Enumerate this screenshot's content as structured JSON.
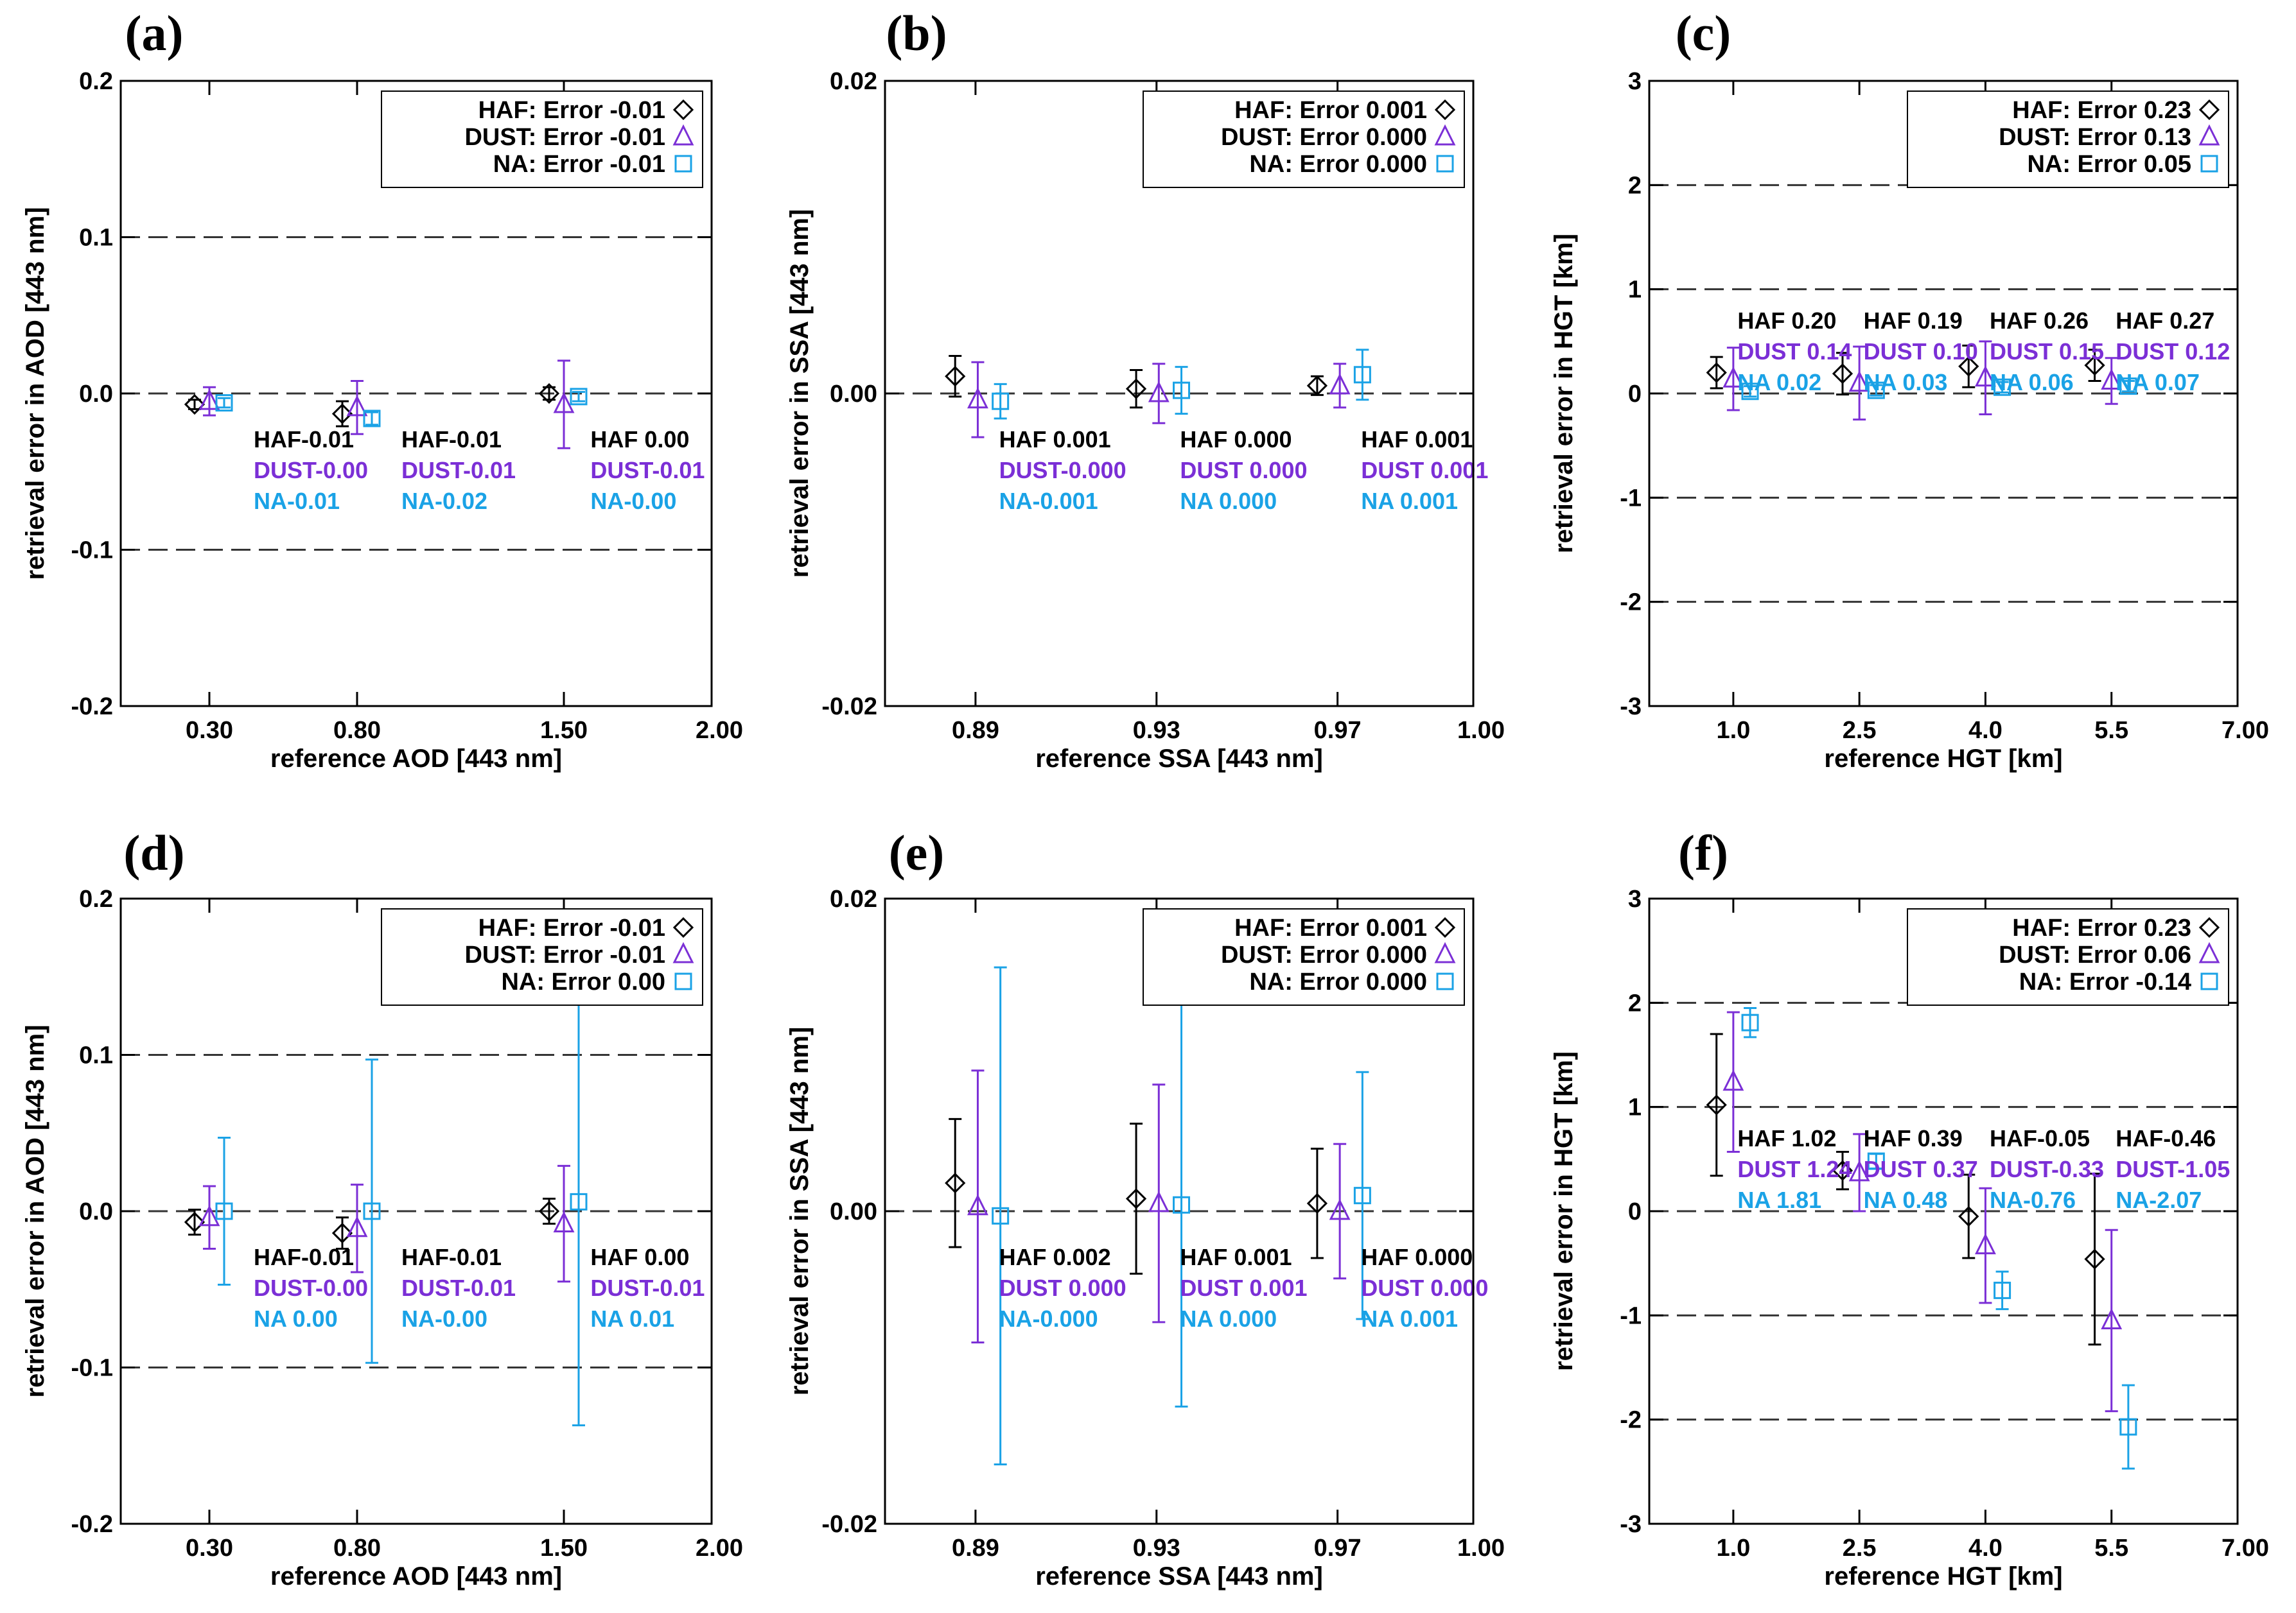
{
  "colors": {
    "HAF": "#000000",
    "DUST": "#7b2fd6",
    "NA": "#1aa2e6"
  },
  "chart_data": [
    {
      "type": "scatter",
      "panel": "(a)",
      "letter": "(a)",
      "xlabel": "reference AOD [443 nm]",
      "ylabel": "retrieval error in AOD [443 nm]",
      "xlim": [
        0,
        2.0
      ],
      "ylim": [
        -0.2,
        0.2
      ],
      "yticks": [
        -0.2,
        -0.1,
        0.0,
        0.1,
        0.2
      ],
      "ytick_labels": [
        "-0.2",
        "-0.1",
        "0.0",
        "0.1",
        "0.2"
      ],
      "xticks": [
        0.3,
        0.8,
        1.5,
        2.0
      ],
      "xtick_labels": [
        "0.30",
        "0.80",
        "1.50",
        "2.00"
      ],
      "ref_lines": [
        0.1,
        0.0,
        -0.1
      ],
      "legend": [
        {
          "series": "HAF",
          "label": "HAF: Error -0.01"
        },
        {
          "series": "DUST",
          "label": "DUST: Error -0.01"
        },
        {
          "series": "NA",
          "label": "NA: Error -0.01"
        }
      ],
      "series": [
        {
          "name": "HAF",
          "marker": "diamond",
          "x": [
            0.25,
            0.75,
            1.45
          ],
          "y": [
            -0.007,
            -0.013,
            0.0
          ],
          "err": [
            0.003,
            0.008,
            0.004
          ]
        },
        {
          "name": "DUST",
          "marker": "triangle",
          "x": [
            0.3,
            0.8,
            1.5
          ],
          "y": [
            -0.005,
            -0.009,
            -0.007
          ],
          "err": [
            0.009,
            0.017,
            0.028
          ]
        },
        {
          "name": "NA",
          "marker": "square",
          "x": [
            0.35,
            0.85,
            1.55
          ],
          "y": [
            -0.006,
            -0.016,
            -0.002
          ],
          "err": [
            0.003,
            0.004,
            0.003
          ]
        }
      ],
      "annotations": [
        {
          "x": 0.45,
          "y": -0.018,
          "lines": [
            "HAF-0.01",
            "DUST-0.00",
            "NA-0.01"
          ]
        },
        {
          "x": 0.95,
          "y": -0.018,
          "lines": [
            "HAF-0.01",
            "DUST-0.01",
            "NA-0.02"
          ]
        },
        {
          "x": 1.59,
          "y": -0.018,
          "lines": [
            "HAF 0.00",
            "DUST-0.01",
            "NA-0.00"
          ]
        }
      ]
    },
    {
      "type": "scatter",
      "panel": "(b)",
      "letter": "(b)",
      "xlabel": "reference SSA [443 nm]",
      "ylabel": "retrieval error in SSA [443 nm]",
      "xlim": [
        0.87,
        1.0
      ],
      "ylim": [
        -0.02,
        0.02
      ],
      "yticks": [
        -0.02,
        0.0,
        0.02
      ],
      "ytick_labels": [
        "-0.02",
        "0.00",
        "0.02"
      ],
      "xticks": [
        0.89,
        0.93,
        0.97,
        1.0
      ],
      "xtick_labels": [
        "0.89",
        "0.93",
        "0.97",
        "1.00"
      ],
      "ref_lines": [
        0.0
      ],
      "legend": [
        {
          "series": "HAF",
          "label": "HAF: Error  0.001"
        },
        {
          "series": "DUST",
          "label": "DUST: Error  0.000"
        },
        {
          "series": "NA",
          "label": "NA: Error  0.000"
        }
      ],
      "series": [
        {
          "name": "HAF",
          "marker": "diamond",
          "x": [
            0.8855,
            0.9255,
            0.9655
          ],
          "y": [
            0.0011,
            0.0003,
            0.0005
          ],
          "err": [
            0.0013,
            0.0012,
            0.0006
          ]
        },
        {
          "name": "DUST",
          "marker": "triangle",
          "x": [
            0.8905,
            0.9305,
            0.9705
          ],
          "y": [
            -0.0004,
            0.0,
            0.0005
          ],
          "err": [
            0.0024,
            0.0019,
            0.0014
          ]
        },
        {
          "name": "NA",
          "marker": "square",
          "x": [
            0.8955,
            0.9355,
            0.9755
          ],
          "y": [
            -0.0005,
            0.0002,
            0.0012
          ],
          "err": [
            0.0011,
            0.0015,
            0.0016
          ]
        }
      ],
      "annotations": [
        {
          "x": 0.8952,
          "y": -0.0018,
          "lines": [
            "HAF 0.001",
            "DUST-0.000",
            "NA-0.001"
          ]
        },
        {
          "x": 0.9352,
          "y": -0.0018,
          "lines": [
            "HAF 0.000",
            "DUST 0.000",
            "NA 0.000"
          ]
        },
        {
          "x": 0.9752,
          "y": -0.0018,
          "lines": [
            "HAF 0.001",
            "DUST 0.001",
            "NA 0.001"
          ]
        }
      ]
    },
    {
      "type": "scatter",
      "panel": "(c)",
      "letter": "(c)",
      "xlabel": "reference HGT [km]",
      "ylabel": "retrieval error in HGT [km]",
      "xlim": [
        0,
        7.0
      ],
      "ylim": [
        -3,
        3
      ],
      "yticks": [
        -3,
        -2,
        -1,
        0,
        1,
        2,
        3
      ],
      "ytick_labels": [
        "-3",
        "-2",
        "-1",
        "0",
        "1",
        "2",
        "3"
      ],
      "xticks": [
        1.0,
        2.5,
        4.0,
        5.5,
        7.0
      ],
      "xtick_labels": [
        "1.0",
        "2.5",
        "4.0",
        "5.5",
        "7.00"
      ],
      "ref_lines": [
        2,
        1,
        0,
        -1,
        -2
      ],
      "legend": [
        {
          "series": "HAF",
          "label": "HAF: Error  0.23"
        },
        {
          "series": "DUST",
          "label": "DUST: Error  0.13"
        },
        {
          "series": "NA",
          "label": "NA: Error  0.05"
        }
      ],
      "series": [
        {
          "name": "HAF",
          "marker": "diamond",
          "x": [
            0.8,
            2.3,
            3.8,
            5.3
          ],
          "y": [
            0.2,
            0.19,
            0.26,
            0.27
          ],
          "err": [
            0.15,
            0.2,
            0.2,
            0.15
          ]
        },
        {
          "name": "DUST",
          "marker": "triangle",
          "x": [
            1.0,
            2.5,
            4.0,
            5.5
          ],
          "y": [
            0.14,
            0.1,
            0.15,
            0.12
          ],
          "err": [
            0.3,
            0.35,
            0.35,
            0.22
          ]
        },
        {
          "name": "NA",
          "marker": "square",
          "x": [
            1.2,
            2.7,
            4.2,
            5.7
          ],
          "y": [
            0.02,
            0.03,
            0.06,
            0.07
          ],
          "err": [
            0.05,
            0.05,
            0.05,
            0.05
          ]
        }
      ],
      "annotations": [
        {
          "x": 1.05,
          "y": 0.87,
          "lines": [
            "HAF 0.20",
            "DUST 0.14",
            "NA 0.02"
          ]
        },
        {
          "x": 2.55,
          "y": 0.87,
          "lines": [
            "HAF 0.19",
            "DUST 0.10",
            "NA 0.03"
          ]
        },
        {
          "x": 4.05,
          "y": 0.87,
          "lines": [
            "HAF 0.26",
            "DUST 0.15",
            "NA 0.06"
          ]
        },
        {
          "x": 5.55,
          "y": 0.87,
          "lines": [
            "HAF 0.27",
            "DUST 0.12",
            "NA 0.07"
          ]
        }
      ]
    },
    {
      "type": "scatter",
      "panel": "(d)",
      "letter": "(d)",
      "xlabel": "reference AOD [443 nm]",
      "ylabel": "retrieval error in AOD [443 nm]",
      "xlim": [
        0,
        2.0
      ],
      "ylim": [
        -0.2,
        0.2
      ],
      "yticks": [
        -0.2,
        -0.1,
        0.0,
        0.1,
        0.2
      ],
      "ytick_labels": [
        "-0.2",
        "-0.1",
        "0.0",
        "0.1",
        "0.2"
      ],
      "xticks": [
        0.3,
        0.8,
        1.5,
        2.0
      ],
      "xtick_labels": [
        "0.30",
        "0.80",
        "1.50",
        "2.00"
      ],
      "ref_lines": [
        0.1,
        0.0,
        -0.1
      ],
      "legend": [
        {
          "series": "HAF",
          "label": "HAF: Error -0.01"
        },
        {
          "series": "DUST",
          "label": "DUST: Error -0.01"
        },
        {
          "series": "NA",
          "label": "NA: Error  0.00"
        }
      ],
      "series": [
        {
          "name": "HAF",
          "marker": "diamond",
          "x": [
            0.25,
            0.75,
            1.45
          ],
          "y": [
            -0.007,
            -0.014,
            0.0
          ],
          "err": [
            0.008,
            0.01,
            0.008
          ]
        },
        {
          "name": "DUST",
          "marker": "triangle",
          "x": [
            0.3,
            0.8,
            1.5
          ],
          "y": [
            -0.004,
            -0.011,
            -0.008
          ],
          "err": [
            0.02,
            0.028,
            0.037
          ]
        },
        {
          "name": "NA",
          "marker": "square",
          "x": [
            0.35,
            0.85,
            1.55
          ],
          "y": [
            0.0,
            0.0,
            0.006
          ],
          "err": [
            0.047,
            0.097,
            0.143
          ]
        }
      ],
      "annotations": [
        {
          "x": 0.45,
          "y": -0.018,
          "lines": [
            "HAF-0.01",
            "DUST-0.00",
            "NA 0.00"
          ]
        },
        {
          "x": 0.95,
          "y": -0.018,
          "lines": [
            "HAF-0.01",
            "DUST-0.01",
            "NA-0.00"
          ]
        },
        {
          "x": 1.59,
          "y": -0.018,
          "lines": [
            "HAF 0.00",
            "DUST-0.01",
            "NA 0.01"
          ]
        }
      ]
    },
    {
      "type": "scatter",
      "panel": "(e)",
      "letter": "(e)",
      "xlabel": "reference SSA [443 nm]",
      "ylabel": "retrieval error in SSA [443 nm]",
      "xlim": [
        0.87,
        1.0
      ],
      "ylim": [
        -0.02,
        0.02
      ],
      "yticks": [
        -0.02,
        0.0,
        0.02
      ],
      "ytick_labels": [
        "-0.02",
        "0.00",
        "0.02"
      ],
      "xticks": [
        0.89,
        0.93,
        0.97,
        1.0
      ],
      "xtick_labels": [
        "0.89",
        "0.93",
        "0.97",
        "1.00"
      ],
      "ref_lines": [
        0.0
      ],
      "legend": [
        {
          "series": "HAF",
          "label": "HAF: Error  0.001"
        },
        {
          "series": "DUST",
          "label": "DUST: Error  0.000"
        },
        {
          "series": "NA",
          "label": "NA: Error  0.000"
        }
      ],
      "series": [
        {
          "name": "HAF",
          "marker": "diamond",
          "x": [
            0.8855,
            0.9255,
            0.9655
          ],
          "y": [
            0.0018,
            0.0008,
            0.0005
          ],
          "err": [
            0.0041,
            0.0048,
            0.0035
          ]
        },
        {
          "name": "DUST",
          "marker": "triangle",
          "x": [
            0.8905,
            0.9305,
            0.9705
          ],
          "y": [
            0.0003,
            0.0005,
            0.0
          ],
          "err": [
            0.0087,
            0.0076,
            0.0043
          ]
        },
        {
          "name": "NA",
          "marker": "square",
          "x": [
            0.8955,
            0.9355,
            0.9755
          ],
          "y": [
            -0.0003,
            0.0004,
            0.001
          ],
          "err": [
            0.0159,
            0.0129,
            0.0079
          ]
        }
      ],
      "annotations": [
        {
          "x": 0.8952,
          "y": -0.0018,
          "lines": [
            "HAF 0.002",
            "DUST 0.000",
            "NA-0.000"
          ]
        },
        {
          "x": 0.9352,
          "y": -0.0018,
          "lines": [
            "HAF 0.001",
            "DUST 0.001",
            "NA 0.000"
          ]
        },
        {
          "x": 0.9752,
          "y": -0.0018,
          "lines": [
            "HAF 0.000",
            "DUST 0.000",
            "NA 0.001"
          ]
        }
      ]
    },
    {
      "type": "scatter",
      "panel": "(f)",
      "letter": "(f)",
      "xlabel": "reference HGT [km]",
      "ylabel": "retrieval error in HGT [km]",
      "xlim": [
        0,
        7.0
      ],
      "ylim": [
        -3,
        3
      ],
      "yticks": [
        -3,
        -2,
        -1,
        0,
        1,
        2,
        3
      ],
      "ytick_labels": [
        "-3",
        "-2",
        "-1",
        "0",
        "1",
        "2",
        "3"
      ],
      "xticks": [
        1.0,
        2.5,
        4.0,
        5.5,
        7.0
      ],
      "xtick_labels": [
        "1.0",
        "2.5",
        "4.0",
        "5.5",
        "7.00"
      ],
      "ref_lines": [
        2,
        1,
        0,
        -1,
        -2
      ],
      "legend": [
        {
          "series": "HAF",
          "label": "HAF: Error  0.23"
        },
        {
          "series": "DUST",
          "label": "DUST: Error  0.06"
        },
        {
          "series": "NA",
          "label": "NA: Error -0.14"
        }
      ],
      "series": [
        {
          "name": "HAF",
          "marker": "diamond",
          "x": [
            0.8,
            2.3,
            3.8,
            5.3
          ],
          "y": [
            1.02,
            0.39,
            -0.05,
            -0.46
          ],
          "err": [
            0.68,
            0.18,
            0.4,
            0.82
          ]
        },
        {
          "name": "DUST",
          "marker": "triangle",
          "x": [
            1.0,
            2.5,
            4.0,
            5.5
          ],
          "y": [
            1.24,
            0.37,
            -0.33,
            -1.05
          ],
          "err": [
            0.67,
            0.37,
            0.55,
            0.87
          ]
        },
        {
          "name": "NA",
          "marker": "square",
          "x": [
            1.2,
            2.7,
            4.2,
            5.7
          ],
          "y": [
            1.81,
            0.48,
            -0.76,
            -2.07
          ],
          "err": [
            0.14,
            0.07,
            0.18,
            0.4
          ]
        }
      ],
      "annotations": [
        {
          "x": 1.05,
          "y": 0.87,
          "lines": [
            "HAF 1.02",
            "DUST 1.24",
            "NA 1.81"
          ]
        },
        {
          "x": 2.55,
          "y": 0.87,
          "lines": [
            "HAF 0.39",
            "DUST 0.37",
            "NA 0.48"
          ]
        },
        {
          "x": 4.05,
          "y": 0.87,
          "lines": [
            "HAF-0.05",
            "DUST-0.33",
            "NA-0.76"
          ]
        },
        {
          "x": 5.55,
          "y": 0.87,
          "lines": [
            "HAF-0.46",
            "DUST-1.05",
            "NA-2.07"
          ]
        }
      ]
    }
  ]
}
